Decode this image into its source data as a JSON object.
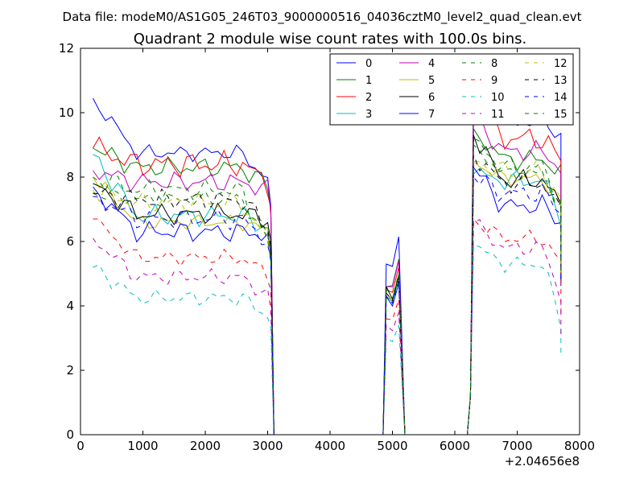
{
  "supertitle": "Data file: modeM0/AS1G05_246T03_9000000516_04036cztM0_level2_quad_clean.evt",
  "chart_data": {
    "type": "line",
    "title": "Quadrant 2 module wise count rates with 100.0s bins.",
    "xlabel": "",
    "ylabel": "",
    "x_offset_label": "+2.04656e8",
    "xlim": [
      0,
      8000
    ],
    "ylim": [
      0,
      12
    ],
    "xticks": [
      0,
      1000,
      2000,
      3000,
      4000,
      5000,
      6000,
      7000,
      8000
    ],
    "xtick_labels": [
      "0",
      "1000",
      "2000",
      "3000",
      "4000",
      "5000",
      "6000",
      "7000",
      "8000"
    ],
    "yticks": [
      0,
      2,
      4,
      6,
      8,
      10,
      12
    ],
    "ytick_labels": [
      "0",
      "2",
      "4",
      "6",
      "8",
      "10",
      "12"
    ],
    "grid": false,
    "legend_position": "top-right",
    "legend_columns": 4,
    "segments": [
      {
        "start": 200,
        "end": 3000,
        "step": 100
      },
      {
        "start": 4900,
        "end": 5100,
        "step": 100
      },
      {
        "start": 6300,
        "end": 7700,
        "step": 100
      }
    ],
    "series": [
      {
        "name": "0",
        "color": "#0000ff",
        "dash": "solid",
        "level": 8.75,
        "start": 10.45,
        "tail": 7.9,
        "var": 0.15,
        "burst": [
          5.3,
          6.15
        ],
        "level2": 9.7,
        "start2": 11.05,
        "tail2": 9.3
      },
      {
        "name": "1",
        "color": "#008000",
        "dash": "solid",
        "level": 8.3,
        "start": 8.9,
        "tail": 7.75,
        "var": 0.2,
        "burst": [
          4.6,
          5.45
        ],
        "level2": 8.55,
        "start2": 9.5,
        "tail2": 8.1
      },
      {
        "name": "2",
        "color": "#ff0000",
        "dash": "solid",
        "level": 8.4,
        "start": 8.9,
        "tail": 7.85,
        "var": 0.25,
        "burst": [
          4.5,
          5.2
        ],
        "level2": 9.2,
        "start2": 10.4,
        "tail2": 8.5
      },
      {
        "name": "3",
        "color": "#00bfbf",
        "dash": "solid",
        "level": 6.8,
        "start": 8.7,
        "tail": 6.4,
        "var": 0.2,
        "burst": [
          4.3,
          4.85
        ],
        "level2": 7.9,
        "start2": 8.1,
        "tail2": 6.8
      },
      {
        "name": "4",
        "color": "#bf00bf",
        "dash": "solid",
        "level": 7.85,
        "start": 8.2,
        "tail": 7.6,
        "var": 0.2,
        "burst": [
          4.6,
          5.4
        ],
        "level2": 8.8,
        "start2": 9.9,
        "tail2": 8.25
      },
      {
        "name": "5",
        "color": "#bfbf00",
        "dash": "solid",
        "level": 6.6,
        "start": 8.0,
        "tail": 6.35,
        "var": 0.15,
        "burst": [
          4.3,
          4.9
        ],
        "level2": 7.95,
        "start2": 8.5,
        "tail2": 7.1
      },
      {
        "name": "6",
        "color": "#000000",
        "dash": "solid",
        "level": 6.85,
        "start": 7.8,
        "tail": 6.7,
        "var": 0.2,
        "burst": [
          4.6,
          4.95
        ],
        "level2": 7.9,
        "start2": 9.3,
        "tail2": 7.1
      },
      {
        "name": "7",
        "color": "#0000ff",
        "dash": "solid",
        "level": 6.3,
        "start": 7.7,
        "tail": 6.2,
        "var": 0.2,
        "burst": [
          4.3,
          4.7
        ],
        "level2": 7.1,
        "start2": 8.3,
        "tail2": 6.6
      },
      {
        "name": "8",
        "color": "#008000",
        "dash": "dashed",
        "level": 7.3,
        "start": 7.5,
        "tail": 6.2,
        "var": 0.15,
        "burst": [
          4.4,
          4.9
        ],
        "level2": 8.1,
        "start2": 9.0,
        "tail2": 7.0
      },
      {
        "name": "9",
        "color": "#ff0000",
        "dash": "dashed",
        "level": 5.5,
        "start": 6.7,
        "tail": 5.0,
        "var": 0.15,
        "burst": [
          3.6,
          4.2
        ],
        "level2": 6.1,
        "start2": 6.7,
        "tail2": 5.3
      },
      {
        "name": "10",
        "color": "#00bfbf",
        "dash": "dashed",
        "level": 4.25,
        "start": 5.2,
        "tail": 3.7,
        "var": 0.15,
        "burst": [
          3.0,
          3.4
        ],
        "level2": 5.3,
        "start2": 5.9,
        "tail2": 3.5
      },
      {
        "name": "11",
        "color": "#bf00bf",
        "dash": "dashed",
        "level": 4.9,
        "start": 6.1,
        "tail": 4.3,
        "var": 0.15,
        "burst": [
          3.4,
          3.8
        ],
        "level2": 5.8,
        "start2": 6.6,
        "tail2": 4.3
      },
      {
        "name": "12",
        "color": "#bfbf00",
        "dash": "dashed",
        "level": 7.2,
        "start": 7.6,
        "tail": 6.0,
        "var": 0.2,
        "burst": [
          4.4,
          4.9
        ],
        "level2": 8.2,
        "start2": 8.5,
        "tail2": 7.2
      },
      {
        "name": "13",
        "color": "#000000",
        "dash": "dashed",
        "level": 7.3,
        "start": 7.5,
        "tail": 6.5,
        "var": 0.2,
        "burst": [
          4.4,
          4.9
        ],
        "level2": 7.8,
        "start2": 8.7,
        "tail2": 6.9
      },
      {
        "name": "14",
        "color": "#0000ff",
        "dash": "dashed",
        "level": 6.7,
        "start": 7.4,
        "tail": 6.0,
        "var": 0.2,
        "burst": [
          4.3,
          4.8
        ],
        "level2": 7.5,
        "start2": 8.0,
        "tail2": 6.9
      },
      {
        "name": "15",
        "color": "#008000",
        "dash": "dashed",
        "level": 7.6,
        "start": 8.0,
        "tail": 6.0,
        "var": 0.2,
        "burst": [
          4.5,
          5.0
        ],
        "level2": 8.3,
        "start2": 9.2,
        "tail2": 7.2
      }
    ]
  }
}
